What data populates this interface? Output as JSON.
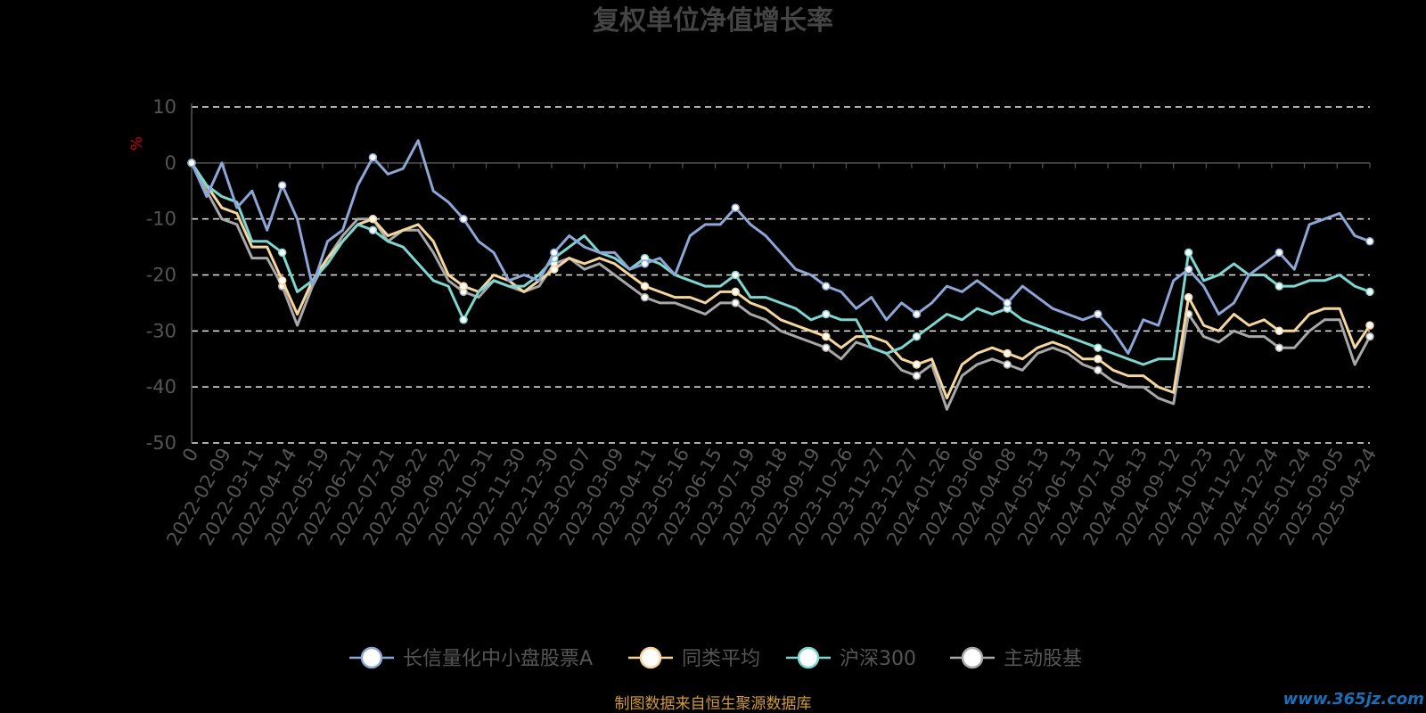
{
  "title": "复权单位净值增长率",
  "source_note": "制图数据来自恒生聚源数据库",
  "watermark": "www.365jz.com",
  "chart_data": {
    "type": "line",
    "title": "复权单位净值增长率",
    "ylabel": "%",
    "ylim": [
      -50,
      10
    ],
    "yticks": [
      10,
      0,
      -10,
      -20,
      -30,
      -40,
      -50
    ],
    "grid": true,
    "legend_position": "bottom",
    "x_tick_labels": [
      "0",
      "2022-02-09",
      "2022-03-11",
      "2022-04-14",
      "2022-05-19",
      "2022-06-21",
      "2022-07-21",
      "2022-08-22",
      "2022-09-22",
      "2022-10-31",
      "2022-11-30",
      "2022-12-30",
      "2023-02-07",
      "2023-03-09",
      "2023-04-11",
      "2023-05-16",
      "2023-06-15",
      "2023-07-19",
      "2023-08-18",
      "2023-09-19",
      "2023-10-26",
      "2023-11-27",
      "2023-12-27",
      "2024-01-26",
      "2024-03-06",
      "2024-04-08",
      "2024-05-13",
      "2024-06-13",
      "2024-07-12",
      "2024-08-13",
      "2024-09-12",
      "2024-10-23",
      "2024-11-22",
      "2024-12-24",
      "2025-01-24",
      "2025-03-05",
      "2025-04-24"
    ],
    "series": [
      {
        "name": "长信量化中小盘股票A",
        "color": "#8ea6d6",
        "values": [
          0,
          -6,
          0,
          -8,
          -5,
          -12,
          -4,
          -10,
          -22,
          -14,
          -12,
          -4,
          1,
          -2,
          -1,
          4,
          -5,
          -7,
          -10,
          -14,
          -16,
          -21,
          -20,
          -21,
          -16,
          -13,
          -15,
          -16,
          -16,
          -19,
          -18,
          -17,
          -20,
          -13,
          -11,
          -11,
          -8,
          -11,
          -13,
          -16,
          -19,
          -20,
          -22,
          -23,
          -26,
          -24,
          -28,
          -25,
          -27,
          -25,
          -22,
          -23,
          -21,
          -23,
          -25,
          -22,
          -24,
          -26,
          -27,
          -28,
          -27,
          -30,
          -34,
          -28,
          -29,
          -21,
          -19,
          -22,
          -27,
          -25,
          -20,
          -18,
          -16,
          -19,
          -11,
          -10,
          -9,
          -13,
          -14
        ]
      },
      {
        "name": "同类平均",
        "color": "#f5d79e",
        "values": [
          0,
          -4,
          -8,
          -9,
          -15,
          -15,
          -21,
          -27,
          -21,
          -17,
          -14,
          -11,
          -10,
          -13,
          -12,
          -11,
          -14,
          -20,
          -22,
          -23,
          -20,
          -21,
          -23,
          -21,
          -19,
          -17,
          -18,
          -17,
          -18,
          -20,
          -22,
          -23,
          -24,
          -24,
          -25,
          -23,
          -23,
          -25,
          -26,
          -28,
          -29,
          -30,
          -31,
          -33,
          -31,
          -31,
          -32,
          -35,
          -36,
          -35,
          -42,
          -36,
          -34,
          -33,
          -34,
          -35,
          -33,
          -32,
          -33,
          -35,
          -35,
          -37,
          -38,
          -38,
          -40,
          -41,
          -24,
          -29,
          -30,
          -27,
          -29,
          -28,
          -30,
          -30,
          -27,
          -26,
          -26,
          -33,
          -29
        ]
      },
      {
        "name": "沪深300",
        "color": "#7fd6cf",
        "values": [
          0,
          -4,
          -6,
          -7,
          -14,
          -14,
          -16,
          -23,
          -21,
          -18,
          -14,
          -11,
          -12,
          -14,
          -15,
          -18,
          -21,
          -22,
          -28,
          -23,
          -21,
          -22,
          -22,
          -20,
          -17,
          -15,
          -13,
          -16,
          -17,
          -19,
          -17,
          -18,
          -20,
          -21,
          -22,
          -22,
          -20,
          -24,
          -24,
          -25,
          -26,
          -28,
          -27,
          -28,
          -28,
          -33,
          -34,
          -33,
          -31,
          -29,
          -27,
          -28,
          -26,
          -27,
          -26,
          -28,
          -29,
          -30,
          -31,
          -32,
          -33,
          -34,
          -35,
          -36,
          -35,
          -35,
          -16,
          -21,
          -20,
          -18,
          -20,
          -20,
          -22,
          -22,
          -21,
          -21,
          -20,
          -22,
          -23
        ]
      },
      {
        "name": "主动股基",
        "color": "#a8a8a8",
        "values": [
          0,
          -5,
          -10,
          -11,
          -17,
          -17,
          -22,
          -29,
          -22,
          -17,
          -13,
          -10,
          -10,
          -14,
          -12,
          -12,
          -16,
          -21,
          -23,
          -24,
          -21,
          -22,
          -23,
          -22,
          -18,
          -17,
          -19,
          -18,
          -20,
          -22,
          -24,
          -25,
          -25,
          -26,
          -27,
          -25,
          -25,
          -27,
          -28,
          -30,
          -31,
          -32,
          -33,
          -35,
          -32,
          -33,
          -34,
          -37,
          -38,
          -36,
          -44,
          -38,
          -36,
          -35,
          -36,
          -37,
          -34,
          -33,
          -34,
          -36,
          -37,
          -39,
          -40,
          -40,
          -42,
          -43,
          -27,
          -31,
          -32,
          -30,
          -31,
          -31,
          -33,
          -33,
          -30,
          -28,
          -28,
          -36,
          -31
        ]
      }
    ]
  }
}
